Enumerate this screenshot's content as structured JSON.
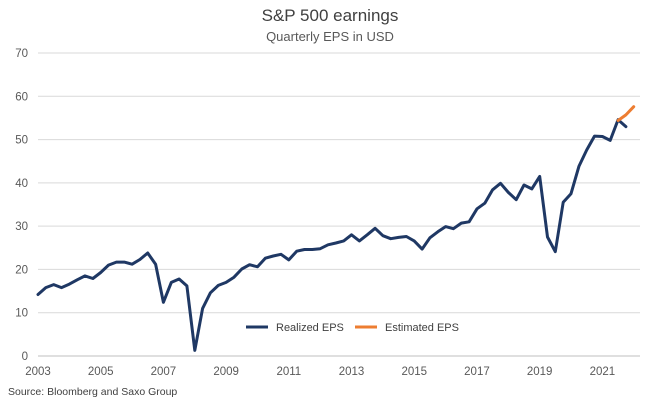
{
  "chart_data": {
    "type": "line",
    "title": "S&P 500 earnings",
    "subtitle": "Quarterly EPS in USD",
    "source": "Source: Bloomberg and Saxo Group",
    "xlabel": "",
    "ylabel": "",
    "xlim": [
      2003,
      2022.2
    ],
    "ylim": [
      0,
      70
    ],
    "yticks": [
      0,
      10,
      20,
      30,
      40,
      50,
      60,
      70
    ],
    "xticks": [
      2003,
      2005,
      2007,
      2009,
      2011,
      2013,
      2015,
      2017,
      2019,
      2021
    ],
    "grid": "horizontal",
    "legend_position": "bottom-center",
    "series": [
      {
        "name": "Realized EPS",
        "color": "#1f3864",
        "x": [
          2003.0,
          2003.25,
          2003.5,
          2003.75,
          2004.0,
          2004.25,
          2004.5,
          2004.75,
          2005.0,
          2005.25,
          2005.5,
          2005.75,
          2006.0,
          2006.25,
          2006.5,
          2006.75,
          2007.0,
          2007.25,
          2007.5,
          2007.75,
          2008.0,
          2008.25,
          2008.5,
          2008.75,
          2009.0,
          2009.25,
          2009.5,
          2009.75,
          2010.0,
          2010.25,
          2010.5,
          2010.75,
          2011.0,
          2011.25,
          2011.5,
          2011.75,
          2012.0,
          2012.25,
          2012.5,
          2012.75,
          2013.0,
          2013.25,
          2013.5,
          2013.75,
          2014.0,
          2014.25,
          2014.5,
          2014.75,
          2015.0,
          2015.25,
          2015.5,
          2015.75,
          2016.0,
          2016.25,
          2016.5,
          2016.75,
          2017.0,
          2017.25,
          2017.5,
          2017.75,
          2018.0,
          2018.25,
          2018.5,
          2018.75,
          2019.0,
          2019.25,
          2019.5,
          2019.75,
          2020.0,
          2020.25,
          2020.5,
          2020.75,
          2021.0,
          2021.25,
          2021.5,
          2021.75,
          2022.0
        ],
        "values": [
          14.2,
          15.8,
          16.5,
          15.8,
          16.6,
          17.6,
          18.5,
          17.9,
          19.3,
          21.0,
          21.7,
          21.7,
          21.2,
          22.3,
          23.8,
          21.2,
          12.4,
          17.0,
          17.8,
          16.2,
          1.3,
          11.0,
          14.6,
          16.3,
          17.0,
          18.2,
          20.1,
          21.1,
          20.6,
          22.6,
          23.1,
          23.5,
          22.2,
          24.2,
          24.6,
          24.6,
          24.8,
          25.7,
          26.1,
          26.6,
          28.0,
          26.6,
          28.0,
          29.5,
          27.8,
          27.1,
          27.4,
          27.6,
          26.6,
          24.7,
          27.3,
          28.7,
          29.9,
          29.4,
          30.7,
          31.0,
          34.0,
          35.3,
          38.4,
          39.9,
          37.8,
          36.1,
          39.5,
          38.6,
          41.5,
          27.5,
          24.1,
          35.5,
          37.5,
          43.8,
          47.6,
          50.8,
          50.7,
          49.8,
          54.6,
          53.0,
          null
        ],
        "note_end": [
          2021.75,
          53.0
        ]
      },
      {
        "name": "Estimated EPS",
        "color": "#ed7d31",
        "x": [
          2021.5,
          2021.75,
          2022.0
        ],
        "values": [
          54.4,
          55.7,
          57.6
        ]
      }
    ]
  }
}
